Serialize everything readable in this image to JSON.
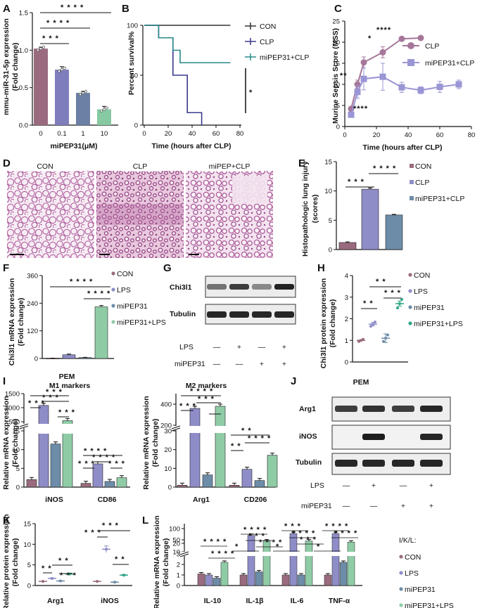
{
  "panels": {
    "A": {
      "label": "A",
      "chart_data": {
        "type": "bar",
        "ylabel": "mmu-miR-31-5p expression\n(Fold change)",
        "xlabel": "miPEP31(μM)",
        "categories": [
          "0",
          "0.1",
          "1",
          "10"
        ],
        "values": [
          1.02,
          0.74,
          0.43,
          0.21
        ],
        "errors": [
          0.02,
          0.04,
          0.02,
          0.04
        ],
        "ylim": [
          0,
          1.5
        ],
        "yticks": [
          "0.0",
          "0.5",
          "1.0",
          "1.5"
        ],
        "colors": [
          "#9a6b7e",
          "#7f7dbb",
          "#6b80a4",
          "#86c9a2"
        ],
        "significance": [
          "* * * *",
          "* * * *",
          "* * *"
        ]
      }
    },
    "B": {
      "label": "B",
      "chart_data": {
        "type": "line",
        "ylabel": "Percent survival%",
        "xlabel": "Time (hours after CLP)",
        "xlim": [
          0,
          80
        ],
        "ylim": [
          0,
          100
        ],
        "xticks": [
          "0",
          "20",
          "40",
          "60",
          "80"
        ],
        "yticks": [
          "0",
          "50",
          "100"
        ],
        "series": [
          {
            "name": "CON",
            "color": "#333333",
            "x": [
              0,
              72
            ],
            "y": [
              100,
              100
            ]
          },
          {
            "name": "CLP",
            "color": "#3a3a8c",
            "x": [
              0,
              12,
              12,
              24,
              24,
              36,
              36,
              48,
              48
            ],
            "y": [
              100,
              100,
              87.5,
              87.5,
              50,
              50,
              12.5,
              12.5,
              0
            ]
          },
          {
            "name": "miPEP31+CLP",
            "color": "#2a8a8a",
            "x": [
              0,
              12,
              12,
              24,
              24,
              30,
              30,
              72
            ],
            "y": [
              100,
              100,
              87.5,
              87.5,
              75,
              75,
              62.5,
              62.5
            ]
          }
        ],
        "significance": "*"
      }
    },
    "C": {
      "label": "C",
      "chart_data": {
        "type": "line",
        "ylabel": "Murine Sepsis Score (MSS)",
        "xlabel": "Time (hours after CLP)",
        "xlim": [
          0,
          80
        ],
        "ylim": [
          0,
          25
        ],
        "xticks": [
          "0",
          "20",
          "40",
          "60",
          "80"
        ],
        "yticks": [
          "0",
          "5",
          "10",
          "15",
          "20",
          "25"
        ],
        "series": [
          {
            "name": "CLP",
            "color": "#a6779a",
            "x": [
              4,
              8,
              12,
              24,
              36,
              48
            ],
            "y": [
              4.2,
              10,
              15.2,
              17.6,
              20.8,
              21
            ]
          },
          {
            "name": "miPEP31+CLP",
            "color": "#9a95d4",
            "x": [
              4,
              8,
              12,
              24,
              36,
              48,
              60,
              72
            ],
            "y": [
              2.8,
              8.2,
              11.3,
              11.8,
              9.3,
              8.6,
              9.4,
              10
            ]
          }
        ],
        "significance": [
          "**",
          "****",
          "*",
          "****"
        ]
      }
    },
    "D": {
      "label": "D",
      "titles": [
        "CON",
        "CLP",
        "miPEP+CLP"
      ]
    },
    "E": {
      "label": "E",
      "chart_data": {
        "type": "bar",
        "ylabel": "Histopathologic lung injury\n(scores)",
        "categories": [
          "CON",
          "CLP",
          "miPEP31+CLP"
        ],
        "values": [
          1.2,
          10.3,
          5.9
        ],
        "errors": [
          0.1,
          0.2,
          0.1
        ],
        "ylim": [
          0,
          15
        ],
        "yticks": [
          "0",
          "5",
          "10",
          "15"
        ],
        "legend": [
          "CON",
          "CLP",
          "miPEP31+CLP"
        ],
        "colors": [
          "#9a6b7e",
          "#8f8dc8",
          "#6d8ca8"
        ],
        "significance": [
          "* * *",
          "* * * *"
        ]
      }
    },
    "F": {
      "label": "F",
      "chart_data": {
        "type": "bar",
        "ylabel": "Chi3l1 mRNA expression\n(Fold change)",
        "categories": [
          "CON",
          "LPS",
          "miPEP31",
          "miPEP31+LPS"
        ],
        "values": [
          1,
          16,
          4,
          224
        ],
        "errors": [
          0.5,
          3,
          1,
          6
        ],
        "ylim": [
          0,
          360
        ],
        "yticks": [
          "0",
          "120",
          "240",
          "360"
        ],
        "legend": [
          "CON",
          "LPS",
          "miPEP31",
          "miPEP31+LPS"
        ],
        "colors": [
          "#9a6b7e",
          "#8f8dc8",
          "#6d8ca8",
          "#8fcca6"
        ],
        "significance": [
          "* * * *",
          "* * * *"
        ]
      }
    },
    "G": {
      "label": "G",
      "blots": [
        "Chi3l1",
        "Tubulin"
      ],
      "conditions": {
        "LPS": [
          "—",
          "+",
          "—",
          "+"
        ],
        "miPEP31": [
          "—",
          "—",
          "+",
          "+"
        ]
      },
      "row_labels": [
        "LPS",
        "miPEP31"
      ]
    },
    "H": {
      "label": "H",
      "chart_data": {
        "type": "scatter",
        "ylabel": "Chi3l1 protein expression\n(Fold change)",
        "categories": [
          "CON",
          "LPS",
          "miPEP31",
          "miPEP31+LPS"
        ],
        "values": [
          1.0,
          1.75,
          1.1,
          2.7
        ],
        "errors": [
          0.02,
          0.08,
          0.2,
          0.12
        ],
        "ylim": [
          0,
          4
        ],
        "yticks": [
          "0",
          "1",
          "2",
          "3",
          "4"
        ],
        "legend": [
          "CON",
          "LPS",
          "miPEP31",
          "miPEP31+LPS"
        ],
        "colors": [
          "#9a6b7e",
          "#8f8dc8",
          "#6d8ca8",
          "#2ea585"
        ],
        "significance": [
          "* *",
          "* *",
          "* * *"
        ]
      }
    },
    "I": {
      "label": "I",
      "left": {
        "title": "PEM",
        "subtitle": "M1 markers",
        "chart_data": {
          "type": "bar",
          "ylabel": "Relative mRNA expression\n(Fold change)",
          "categories": [
            "iNOS",
            "CD86"
          ],
          "series": [
            {
              "name": "CON",
              "values": [
                2,
                1
              ]
            },
            {
              "name": "LPS",
              "values": [
                1080,
                6.2
              ]
            },
            {
              "name": "miPEP31",
              "values": [
                11.5,
                1.5
              ]
            },
            {
              "name": "miPEP31+LPS",
              "values": [
                540,
                2.5
              ]
            }
          ],
          "yticks": [
            "0",
            "5",
            "10",
            "15",
            "500",
            "1000",
            "1500"
          ],
          "significance": [
            "* * *",
            "* * *",
            "* * *",
            "* * *",
            "* * * *",
            "* * *",
            "* * * *",
            "* * *"
          ]
        }
      },
      "right": {
        "subtitle": "M2 markers",
        "chart_data": {
          "type": "bar",
          "ylabel": "Relative mRNA expression\n(Fold change)",
          "categories": [
            "Arg1",
            "CD206"
          ],
          "series": [
            {
              "name": "CON",
              "values": [
                1,
                1
              ]
            },
            {
              "name": "LPS",
              "values": [
                360,
                9.5
              ]
            },
            {
              "name": "miPEP31",
              "values": [
                6.5,
                3.5
              ]
            },
            {
              "name": "miPEP31+LPS",
              "values": [
                380,
                17
              ]
            }
          ],
          "yticks": [
            "0",
            "10",
            "20",
            "30",
            "200",
            "400"
          ],
          "significance": [
            "* * *",
            "* * * *",
            "* * *",
            "* *",
            "* *",
            "* * * *"
          ]
        }
      }
    },
    "J": {
      "label": "J",
      "title": "PEM",
      "blots": [
        "Arg1",
        "iNOS",
        "Tubulin"
      ],
      "conditions": {
        "LPS": [
          "—",
          "+",
          "—",
          "+"
        ],
        "miPEP31": [
          "—",
          "—",
          "+",
          "+"
        ]
      },
      "row_labels": [
        "LPS",
        "miPEP31"
      ]
    },
    "K": {
      "label": "K",
      "chart_data": {
        "type": "scatter",
        "ylabel": "Relative protein expression\n(Fold change)",
        "categories": [
          "Arg1",
          "iNOS"
        ],
        "series": [
          {
            "name": "CON",
            "values": [
              1,
              1
            ]
          },
          {
            "name": "LPS",
            "values": [
              1.7,
              8.8
            ]
          },
          {
            "name": "miPEP31",
            "values": [
              1.1,
              0.8
            ]
          },
          {
            "name": "miPEP31+LPS",
            "values": [
              2.8,
              2.5
            ]
          }
        ],
        "ylim": [
          0,
          15
        ],
        "yticks": [
          "0",
          "5",
          "10",
          "15"
        ],
        "significance": [
          "* *",
          "* *",
          "* * *",
          "* * *",
          "* * *",
          "* *"
        ]
      }
    },
    "L": {
      "label": "L",
      "chart_data": {
        "type": "bar",
        "ylabel": "Relative mRNA expression\n(Fold change)",
        "categories": [
          "IL-10",
          "IL-1β",
          "IL-6",
          "TNF-α"
        ],
        "series": [
          {
            "name": "CON",
            "values": [
              1.1,
              1.0,
              1.0,
              1.0
            ]
          },
          {
            "name": "LPS",
            "values": [
              1.0,
              70,
              78,
              78
            ]
          },
          {
            "name": "miPEP31",
            "values": [
              0.7,
              1.3,
              1.0,
              2.2
            ]
          },
          {
            "name": "miPEP31+LPS",
            "values": [
              2.2,
              45,
              45,
              40
            ]
          }
        ],
        "yticks": [
          "0",
          "1",
          "2",
          "3",
          "10",
          "20",
          "50",
          "100"
        ],
        "legend_title": "I/K/L:",
        "legend": [
          "CON",
          "LPS",
          "miPEP31",
          "miPEP31+LPS"
        ],
        "colors": [
          "#9a6b7e",
          "#8f8dc8",
          "#6d8ca8",
          "#8fcca6"
        ],
        "significance": [
          "* * * *",
          "* * * *",
          "* * * *",
          "* * *",
          "* * * *",
          "* * *",
          "* * * *",
          "* * *",
          "* * * *",
          "* * * *",
          "*",
          "*",
          "*"
        ]
      }
    }
  }
}
